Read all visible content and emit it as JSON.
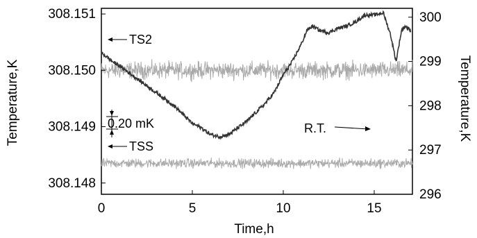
{
  "chart_data": {
    "type": "line",
    "xlabel": "Time,h",
    "ylabel_left": "Temperature,K",
    "ylabel_right": "Temperature,K",
    "xlim": [
      0,
      17.1
    ],
    "ylim_left": [
      308.1478,
      308.1511
    ],
    "ylim_right": [
      296,
      300.2
    ],
    "x_ticks": [
      0,
      5,
      10,
      15
    ],
    "y_ticks_left": [
      "308.148",
      "308.149",
      "308.150",
      "308.151"
    ],
    "y_ticks_right": [
      "296",
      "297",
      "298",
      "299",
      "300"
    ],
    "grid": false,
    "legend": "none",
    "series": [
      {
        "name": "TS2",
        "axis": "left",
        "color": "#aaaaaa",
        "mean": 308.15,
        "noise_amplitude": 0.00022
      },
      {
        "name": "TSS",
        "axis": "left",
        "color": "#aaaaaa",
        "mean": 308.14835,
        "noise_amplitude": 0.00012
      },
      {
        "name": "R.T.",
        "axis": "right",
        "color": "#333333",
        "x": [
          0,
          0.3,
          0.6,
          1.0,
          1.5,
          2.0,
          2.5,
          3.0,
          3.5,
          4.0,
          4.5,
          5.0,
          5.5,
          6.0,
          6.5,
          7.0,
          7.5,
          8.0,
          8.5,
          9.0,
          9.5,
          10.0,
          10.5,
          11.0,
          11.3,
          11.6,
          12.0,
          12.5,
          13.0,
          13.5,
          14.0,
          14.5,
          15.0,
          15.5,
          15.9,
          16.2,
          16.5,
          16.7,
          17.0
        ],
        "y": [
          299.2,
          299.1,
          299.0,
          298.9,
          298.75,
          298.6,
          298.45,
          298.3,
          298.15,
          298.0,
          297.8,
          297.6,
          297.5,
          297.35,
          297.3,
          297.35,
          297.5,
          297.65,
          297.85,
          298.05,
          298.3,
          298.7,
          299.0,
          299.4,
          299.7,
          299.8,
          299.7,
          299.65,
          299.75,
          299.8,
          299.9,
          300.05,
          300.05,
          300.1,
          299.6,
          299.0,
          299.7,
          299.8,
          299.7
        ]
      }
    ],
    "annotations": [
      {
        "text": "TS2",
        "arrow": "left"
      },
      {
        "text": "0.20 mK",
        "arrow": "vertical"
      },
      {
        "text": "TSS",
        "arrow": "left"
      },
      {
        "text": "R.T.",
        "arrow": "right"
      }
    ]
  }
}
